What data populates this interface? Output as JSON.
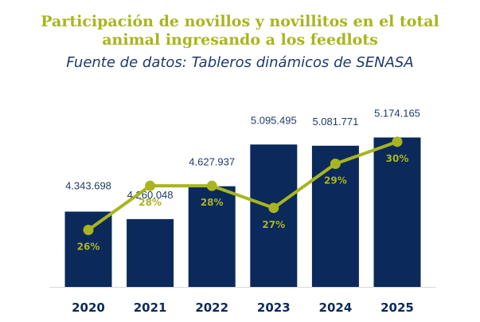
{
  "header": {
    "title_line1": "Participación de novillos y novillitos en el total",
    "title_line2": "animal ingresando a los feedlots",
    "subtitle": "Fuente de datos: Tableros dinámicos de SENASA"
  },
  "colors": {
    "bar": "#0b2a5b",
    "line": "#a8b51f",
    "title": "#a8b51f",
    "subtitle": "#1f3a6b",
    "value_label": "#1f3a6b",
    "pct_label": "#a8b51f"
  },
  "chart_data": {
    "type": "bar",
    "categories": [
      "2020",
      "2021",
      "2022",
      "2023",
      "2024",
      "2025"
    ],
    "series": [
      {
        "values": [
          4343698,
          4260048,
          4627937,
          5095495,
          5081771,
          5174165
        ],
        "value_labels": [
          "4.343.698",
          "4.260.048",
          "4.627.937",
          "5.095.495",
          "5.081.771",
          "5.174.165"
        ]
      },
      {
        "type": "line",
        "values": [
          26,
          28,
          28,
          27,
          29,
          30
        ],
        "value_labels": [
          "26%",
          "28%",
          "28%",
          "27%",
          "29%",
          "30%"
        ]
      }
    ],
    "title": "Participación de novillos y novillitos en el total animal ingresando a los feedlots",
    "subtitle": "Fuente de datos: Tableros dinámicos de SENASA",
    "bar_axis_range": [
      3500000,
      5250000
    ],
    "line_axis_range": [
      24.5,
      30.5
    ],
    "grid": false,
    "legend": "none"
  }
}
